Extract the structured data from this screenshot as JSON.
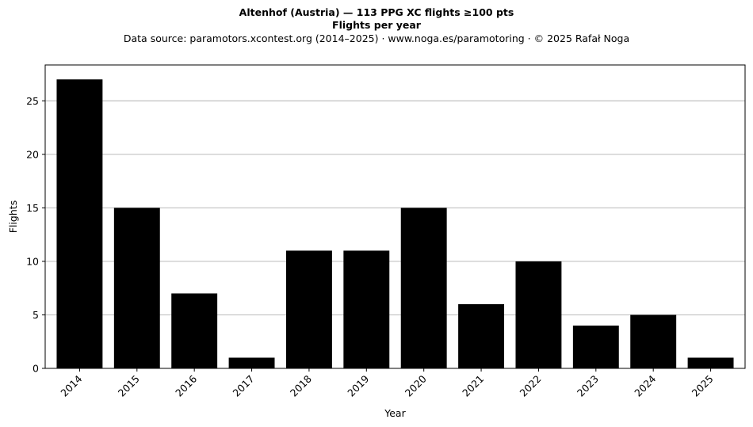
{
  "chart_data": {
    "type": "bar",
    "title": "Altenhof (Austria)  —  113 PPG XC flights ≥100 pts",
    "subtitle": "Flights per year",
    "source_note": "Data source: paramotors.xcontest.org (2014–2025)  ·  www.noga.es/paramotoring  ·  © 2025 Rafał Noga",
    "xlabel": "Year",
    "ylabel": "Flights",
    "categories": [
      "2014",
      "2015",
      "2016",
      "2017",
      "2018",
      "2019",
      "2020",
      "2021",
      "2022",
      "2023",
      "2024",
      "2025"
    ],
    "values": [
      27,
      15,
      7,
      1,
      11,
      11,
      15,
      6,
      10,
      4,
      5,
      1
    ],
    "ylim": [
      0,
      28.35
    ],
    "yticks": [
      0,
      5,
      10,
      15,
      20,
      25
    ],
    "grid": "y",
    "legend": "none",
    "bar_color": "#000000",
    "grid_color": "#b0b0b0"
  }
}
